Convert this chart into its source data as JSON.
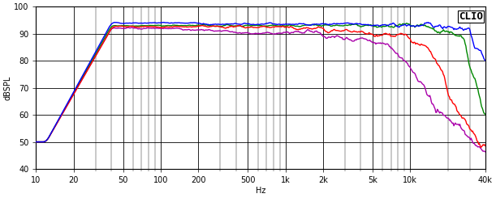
{
  "title": "CLIO",
  "ylabel": "dBSPL",
  "xlabel": "Hz",
  "xmin": 10,
  "xmax": 40000,
  "ymin": 40,
  "ymax": 100,
  "background_color": "#ffffff",
  "plot_background": "#ffffff",
  "grid_color": "#000000",
  "colors": [
    "#0000ff",
    "#008800",
    "#ff0000",
    "#aa00aa"
  ],
  "xticks": [
    10,
    20,
    50,
    100,
    200,
    500,
    1000,
    2000,
    5000,
    10000,
    40000
  ],
  "xtick_labels": [
    "10",
    "20",
    "50",
    "100",
    "200",
    "500",
    "1k",
    "2k",
    "5k",
    "10k",
    "40k"
  ],
  "yticks": [
    40,
    50,
    60,
    70,
    80,
    90,
    100
  ],
  "line_width": 1.0
}
